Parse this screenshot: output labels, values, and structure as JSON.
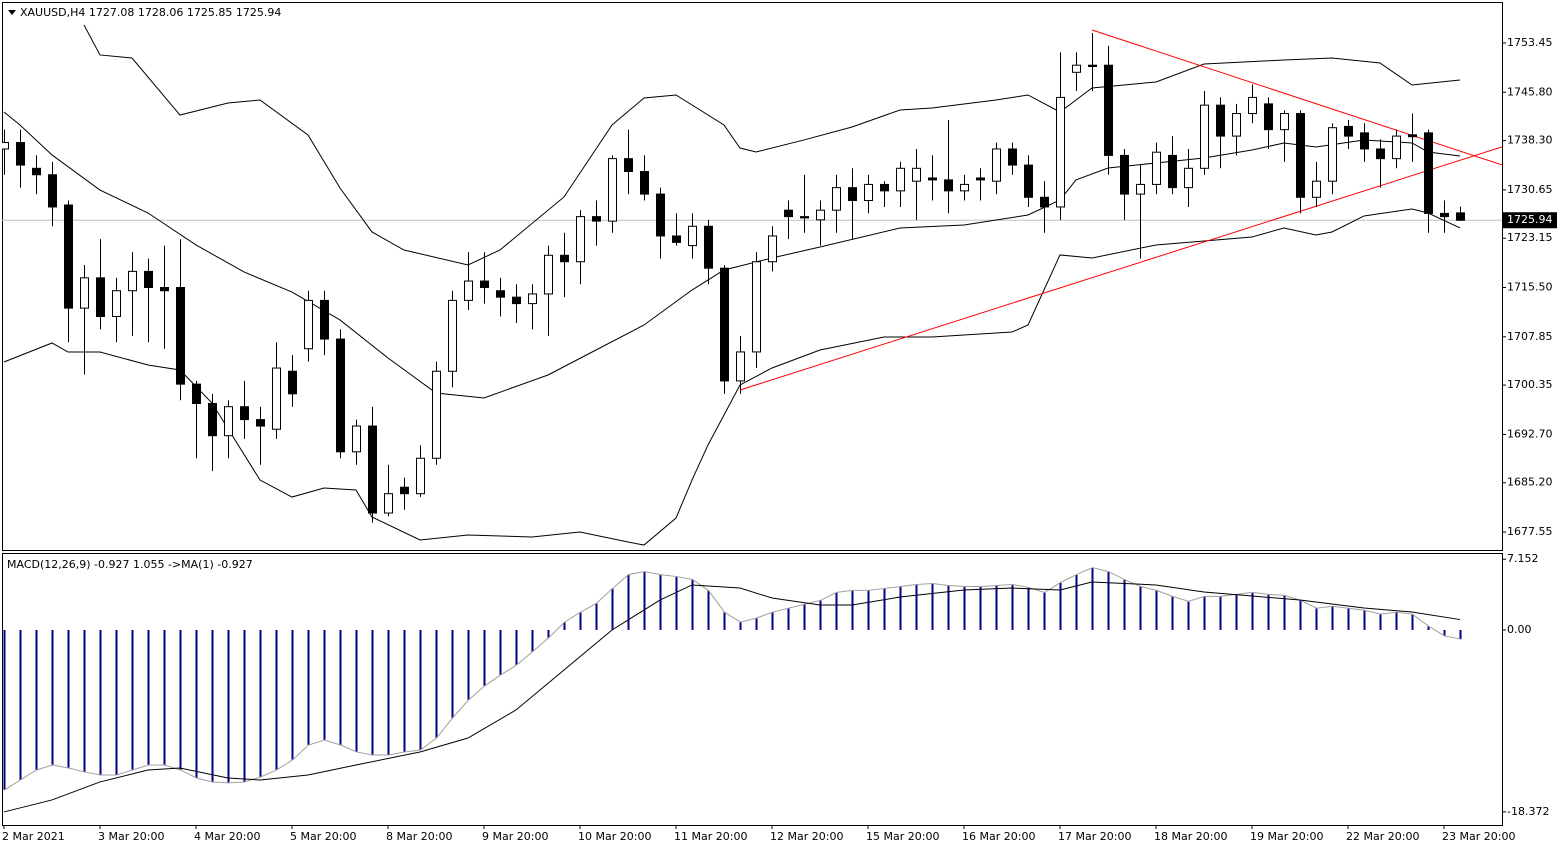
{
  "chart_data": [
    {
      "type": "candlestick",
      "title": "XAUUSD,H4  1727.08 1728.06 1725.85 1725.94",
      "categories": [
        "2 Mar 2021",
        null,
        null,
        null,
        null,
        null,
        "3 Mar 20:00",
        null,
        null,
        null,
        null,
        null,
        "4 Mar 20:00",
        null,
        null,
        null,
        null,
        null,
        "5 Mar 20:00",
        null,
        null,
        null,
        null,
        null,
        "8 Mar 20:00",
        null,
        null,
        null,
        null,
        null,
        "9 Mar 20:00",
        null,
        null,
        null,
        null,
        null,
        "10 Mar 20:00",
        null,
        null,
        null,
        null,
        null,
        "11 Mar 20:00",
        null,
        null,
        null,
        null,
        null,
        "12 Mar 20:00",
        null,
        null,
        null,
        null,
        null,
        "15 Mar 20:00",
        null,
        null,
        null,
        null,
        null,
        "16 Mar 20:00",
        null,
        null,
        null,
        null,
        null,
        "17 Mar 20:00",
        null,
        null,
        null,
        null,
        null,
        "18 Mar 20:00",
        null,
        null,
        null,
        null,
        null,
        "19 Mar 20:00",
        null,
        null,
        null,
        null,
        null,
        "22 Mar 20:00",
        null,
        null,
        null,
        null,
        null,
        "23 Mar 20:00",
        null
      ],
      "open": [
        1737,
        1738,
        1734,
        1733,
        1728.3,
        1712.3,
        1717,
        1711,
        1715,
        1718,
        1715.5,
        1715.5,
        1700.5,
        1697.5,
        1692.5,
        1697,
        1695,
        1693.5,
        1702.5,
        1706,
        1713.5,
        1707.5,
        1690,
        1694,
        1680.5,
        1684.5,
        1683.5,
        1689,
        1702.5,
        1713.5,
        1716.5,
        1715,
        1714,
        1713,
        1714.5,
        1720.5,
        1719.5,
        1726.5,
        1725.8,
        1735.5,
        1733.5,
        1730,
        1723.5,
        1722,
        1725,
        1718.5,
        1701,
        1705.5,
        1719.5,
        1727.5,
        1726.5,
        1726,
        1727.5,
        1731,
        1729,
        1731.5,
        1730.5,
        1732,
        1732.5,
        1732.2,
        1730.5,
        1732.5,
        1732,
        1737,
        1734.5,
        1729.5,
        1728,
        1748.9,
        1750,
        1750,
        1736,
        1730,
        1731.5,
        1736,
        1731,
        1734,
        1743.8,
        1739,
        1742.5,
        1744,
        1740,
        1742.5,
        1729.5,
        1732,
        1740.5,
        1739.5,
        1737,
        1735.5,
        1739.2,
        1739.5,
        1727,
        1727.08
      ],
      "high": [
        1740,
        1740,
        1736,
        1735,
        1729,
        1719,
        1723,
        1717,
        1721,
        1720,
        1722,
        1723,
        1701,
        1699,
        1698,
        1701,
        1697,
        1707,
        1705,
        1715,
        1715,
        1709,
        1695,
        1697,
        1688,
        1686,
        1691,
        1704,
        1715,
        1721,
        1721,
        1717,
        1716,
        1716,
        1722,
        1724,
        1727.5,
        1729,
        1736,
        1740,
        1736,
        1731,
        1727,
        1727,
        1726,
        1719,
        1708,
        1721,
        1725,
        1729,
        1733,
        1729,
        1733,
        1734,
        1733,
        1732,
        1735,
        1737,
        1736,
        1741.5,
        1733,
        1734,
        1738,
        1738,
        1736,
        1732,
        1752,
        1752,
        1755,
        1753,
        1737,
        1734.5,
        1738,
        1739,
        1737,
        1746,
        1745,
        1744,
        1747,
        1745,
        1743,
        1743,
        1735,
        1741,
        1741.5,
        1741,
        1738.5,
        1740,
        1742.5,
        1740,
        1729,
        1728.06
      ],
      "low": [
        1733,
        1731,
        1730,
        1725,
        1707,
        1702,
        1709,
        1707,
        1708,
        1707,
        1706,
        1698,
        1689,
        1687,
        1689,
        1692,
        1688,
        1692,
        1697,
        1704,
        1705,
        1689,
        1688,
        1679,
        1680,
        1681,
        1683,
        1688,
        1700,
        1712,
        1713,
        1711,
        1710,
        1709,
        1708,
        1714,
        1716,
        1722,
        1724,
        1730,
        1729,
        1720,
        1722,
        1720,
        1716,
        1699,
        1699,
        1703,
        1718,
        1723,
        1724,
        1722,
        1724,
        1723,
        1727,
        1728,
        1728,
        1726,
        1729,
        1727,
        1729,
        1729,
        1730,
        1733,
        1728,
        1724,
        1726,
        1746,
        1746,
        1733,
        1726,
        1720,
        1730,
        1730,
        1728,
        1733,
        1734,
        1736,
        1741,
        1737,
        1735,
        1727,
        1728,
        1730,
        1737,
        1735,
        1731,
        1734,
        1735,
        1724,
        1724,
        1725.85
      ],
      "close": [
        1738,
        1734.5,
        1733,
        1728,
        1712.3,
        1717,
        1711,
        1715,
        1718,
        1715.5,
        1715,
        1700.5,
        1697.5,
        1692.5,
        1697,
        1695,
        1694,
        1703,
        1699,
        1713.5,
        1707.5,
        1690,
        1694,
        1680.5,
        1683.5,
        1683.5,
        1689,
        1702.5,
        1713.5,
        1716.5,
        1715.5,
        1714,
        1713,
        1714.5,
        1720.5,
        1719.5,
        1726.5,
        1725.8,
        1735.5,
        1733.5,
        1730,
        1723.5,
        1722.5,
        1725,
        1718.5,
        1701,
        1705.5,
        1719.5,
        1723.5,
        1726.5,
        1726.3,
        1727.5,
        1731,
        1729,
        1731.5,
        1730.5,
        1734,
        1734,
        1732.2,
        1730.5,
        1731.5,
        1732.2,
        1737,
        1734.5,
        1729.5,
        1728,
        1745,
        1750,
        1749.8,
        1736,
        1730,
        1731.5,
        1736.5,
        1731,
        1734,
        1743.8,
        1739,
        1742.5,
        1745,
        1740,
        1742.5,
        1729.5,
        1732,
        1740.3,
        1739,
        1737,
        1735.5,
        1739,
        1738.9,
        1727,
        1726.5,
        1725.94
      ],
      "up_color": "#ffffff",
      "down_color": "#000000",
      "bands": {
        "color": "#000000",
        "upper": {
          "x": [
            5,
            6,
            8,
            11,
            14,
            16,
            19,
            21,
            23,
            25,
            29,
            31,
            35,
            38,
            40,
            42,
            45,
            46,
            47,
            50,
            53,
            56,
            58,
            62,
            64,
            66,
            67,
            68,
            72,
            75,
            80,
            83,
            86,
            88,
            91
          ],
          "values": [
            1756.24,
            1751.59,
            1751.12,
            1742.27,
            1744.14,
            1744.6,
            1739.17,
            1730.94,
            1724.12,
            1721.32,
            1719.0,
            1721.32,
            1729.55,
            1740.72,
            1744.91,
            1745.38,
            1740.72,
            1737.15,
            1736.53,
            1738.4,
            1740.41,
            1743.05,
            1743.36,
            1744.6,
            1745.38,
            1742.74,
            1744.6,
            1746.47,
            1747.4,
            1750.19,
            1750.81,
            1751.12,
            1750.35,
            1746.93,
            1747.71
          ]
        },
        "middle": {
          "x": [
            0,
            1,
            3,
            6,
            9,
            12,
            15,
            18,
            21,
            24,
            27,
            30,
            34,
            37,
            40,
            43,
            45,
            48,
            51,
            56,
            60,
            64,
            66,
            67,
            69,
            72,
            75,
            78,
            80,
            82,
            85,
            88,
            89,
            91
          ],
          "values": [
            1742.74,
            1740.72,
            1736.07,
            1730.63,
            1727.06,
            1722.1,
            1717.91,
            1714.8,
            1710.46,
            1704.56,
            1699.13,
            1698.36,
            1701.92,
            1705.8,
            1709.68,
            1715.11,
            1718.22,
            1720.08,
            1721.79,
            1724.74,
            1725.2,
            1726.75,
            1729.08,
            1732.19,
            1734.05,
            1734.83,
            1735.6,
            1736.84,
            1737.93,
            1737.31,
            1738.4,
            1737.93,
            1736.53,
            1735.91
          ]
        },
        "lower": {
          "x": [
            0,
            3,
            4,
            6,
            9,
            11,
            13,
            16,
            18,
            20,
            22,
            23,
            26,
            29,
            33,
            36,
            39,
            40,
            42,
            43,
            44,
            46,
            48,
            51,
            55,
            58,
            63,
            64,
            66,
            68,
            72,
            75,
            78,
            80,
            82,
            83,
            85,
            88,
            89,
            91
          ],
          "values": [
            1703.94,
            1706.89,
            1705.49,
            1705.49,
            1703.47,
            1702.7,
            1697.57,
            1685.62,
            1682.98,
            1684.38,
            1684.07,
            1679.88,
            1676.31,
            1677.09,
            1676.78,
            1677.55,
            1676.0,
            1675.53,
            1679.72,
            1685.62,
            1691.06,
            1700.37,
            1703.01,
            1705.8,
            1707.82,
            1707.82,
            1708.59,
            1709.68,
            1720.55,
            1720.08,
            1722.1,
            1722.72,
            1723.34,
            1724.74,
            1723.65,
            1724.12,
            1726.6,
            1727.69,
            1727.06,
            1724.74
          ]
        }
      },
      "trendlines": [
        {
          "x": [
            46,
            91
          ],
          "values": [
            1699.59,
            1735.24
          ]
        },
        {
          "x": [
            68,
            91
          ],
          "values": [
            1755.47,
            1736.67
          ]
        }
      ],
      "trendline_color": "#ff0000",
      "last_price": 1725.94,
      "ylim": [
        1674.76,
        1759.81
      ],
      "yticks": [
        1753.45,
        {
          "value": 1745.8,
          "label": "1745.80"
        },
        {
          "value": 1738.3,
          "label": "1738.30"
        },
        1730.65,
        1723.15,
        {
          "value": 1715.5,
          "label": "1715.50"
        },
        1707.85,
        1700.35,
        {
          "value": 1692.7,
          "label": "1692.70"
        },
        {
          "value": 1685.2,
          "label": "1685.20"
        },
        1677.55
      ]
    },
    {
      "type": "macd",
      "title": "MACD(12,26,9) -0.927 1.055 ->MA(1) -0.927",
      "values": [
        -16.16,
        -15.15,
        -14.14,
        -13.64,
        -13.94,
        -14.34,
        -14.65,
        -14.65,
        -14.14,
        -13.64,
        -13.64,
        -14.14,
        -14.95,
        -15.35,
        -15.45,
        -15.35,
        -14.85,
        -14.14,
        -13.13,
        -11.62,
        -11.11,
        -11.62,
        -12.32,
        -12.63,
        -12.63,
        -12.32,
        -12.12,
        -10.91,
        -8.89,
        -7.07,
        -5.66,
        -4.55,
        -3.54,
        -2.2,
        -0.8,
        0.8,
        1.8,
        2.7,
        4.2,
        5.6,
        5.9,
        5.6,
        5.4,
        5.1,
        4.0,
        1.8,
        0.8,
        1.2,
        1.8,
        2.2,
        2.6,
        3.0,
        3.8,
        4.0,
        4.0,
        4.2,
        4.4,
        4.6,
        4.7,
        4.5,
        4.4,
        4.4,
        4.5,
        4.6,
        4.3,
        3.8,
        4.8,
        5.6,
        6.3,
        5.9,
        5.1,
        4.4,
        4.0,
        3.4,
        2.9,
        3.4,
        3.4,
        3.6,
        3.8,
        3.6,
        3.5,
        3.0,
        2.2,
        2.4,
        2.2,
        2.0,
        1.6,
        1.8,
        1.6,
        0.4,
        -0.6,
        -0.927
      ],
      "color": "#00008b",
      "line_color": "#a0a0a0",
      "signal": {
        "color": "#000000",
        "x": [
          0,
          3,
          6,
          9,
          11,
          14,
          16,
          19,
          22,
          26,
          29,
          32,
          35,
          38,
          41,
          43,
          46,
          48,
          51,
          53,
          56,
          60,
          63,
          66,
          68,
          72,
          75,
          78,
          81,
          85,
          88,
          91
        ],
        "values": [
          -18.38,
          -17.17,
          -15.35,
          -14.14,
          -13.94,
          -14.95,
          -15.15,
          -14.65,
          -13.64,
          -12.32,
          -10.91,
          -8.08,
          -4.04,
          0,
          3.03,
          4.55,
          4.24,
          3.23,
          2.53,
          2.53,
          3.33,
          4.04,
          4.24,
          4.04,
          4.85,
          4.55,
          3.84,
          3.43,
          3.03,
          2.22,
          1.82,
          1.055
        ]
      },
      "ylim": [
        -19.7,
        7.78
      ],
      "yticks": [
        7.152,
        {
          "value": 0,
          "label": "0.00"
        },
        -18.372
      ]
    }
  ]
}
